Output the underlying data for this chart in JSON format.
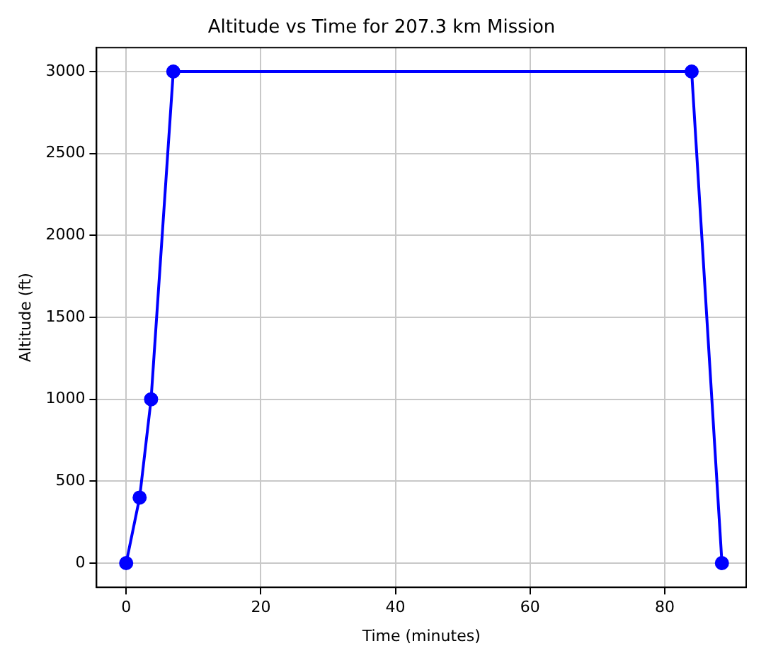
{
  "chart_data": {
    "type": "line",
    "title": "Altitude vs Time for 207.3 km Mission",
    "xlabel": "Time (minutes)",
    "ylabel": "Altitude (ft)",
    "x": [
      0,
      2,
      3.7,
      7,
      84,
      88.5
    ],
    "series": [
      {
        "color": "#0000ff",
        "values": [
          0,
          400,
          1000,
          3000,
          3000,
          0
        ]
      }
    ],
    "xlim": [
      -4.4,
      92.1
    ],
    "xticks": [
      0,
      20,
      40,
      60,
      80
    ],
    "ylim": [
      -148,
      3146
    ],
    "yticks": [
      0,
      500,
      1000,
      1500,
      2000,
      2500,
      3000
    ],
    "grid": true,
    "marker": "circle",
    "line_style": "solid",
    "legend": false
  }
}
